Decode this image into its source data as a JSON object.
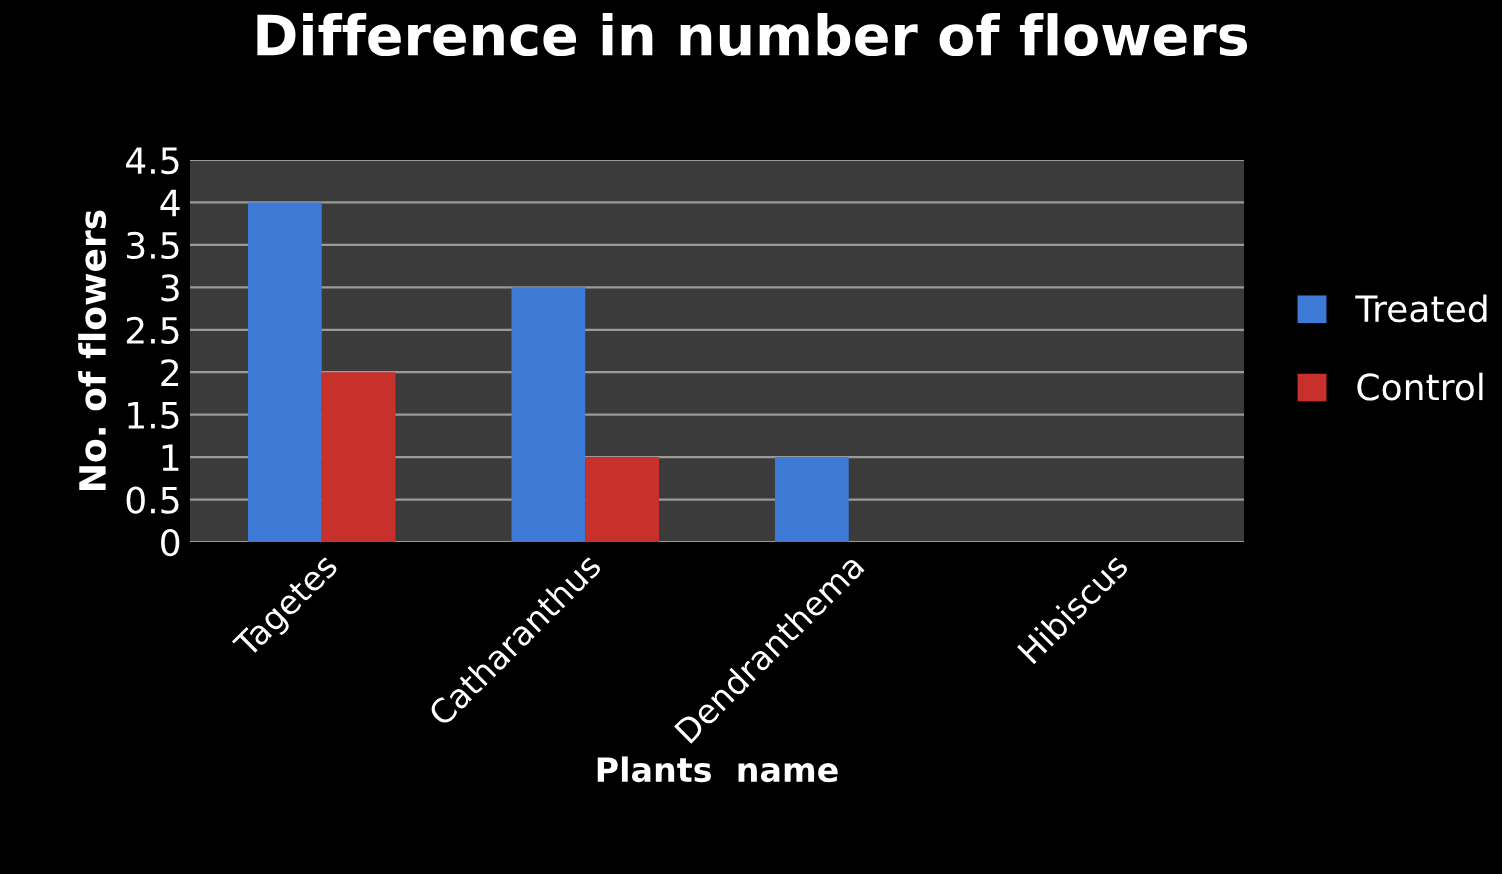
{
  "chart_data": {
    "type": "bar",
    "title": "Difference in number of flowers",
    "xlabel": "Plants  name",
    "ylabel": "No. of flowers",
    "categories": [
      "Tagetes",
      "Catharanthus",
      "Dendranthema",
      "Hibiscus"
    ],
    "series": [
      {
        "name": "Treated",
        "color": "#3d7ad6",
        "values": [
          4,
          3,
          1,
          0
        ]
      },
      {
        "name": "Control",
        "color": "#c8302c",
        "values": [
          2,
          1,
          0,
          0
        ]
      }
    ],
    "ylim": [
      0,
      4.5
    ],
    "yticks": [
      0,
      0.5,
      1,
      1.5,
      2,
      2.5,
      3,
      3.5,
      4,
      4.5
    ],
    "grid": "y",
    "legend": "right"
  }
}
